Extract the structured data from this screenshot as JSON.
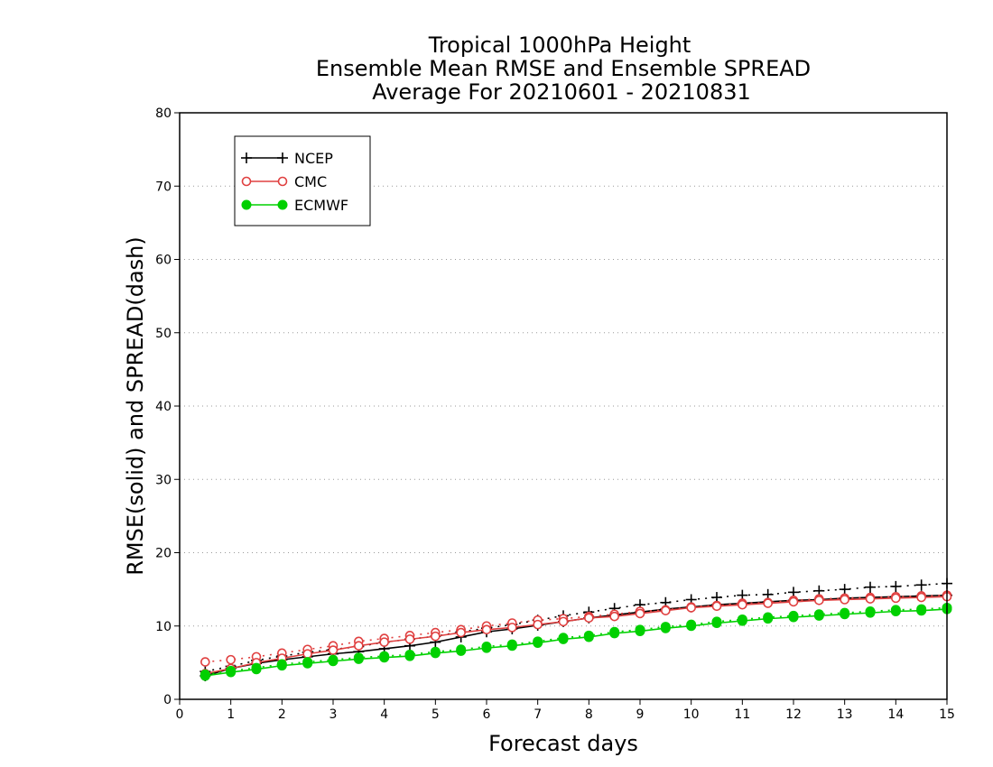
{
  "chart_data": {
    "type": "line",
    "title_lines": [
      "Tropical 1000hPa Height",
      "Ensemble Mean RMSE and Ensemble SPREAD",
      "Average For 20210601 - 20210831"
    ],
    "xlabel": "Forecast days",
    "ylabel": "RMSE(solid) and SPREAD(dash)",
    "xlim": [
      0,
      15
    ],
    "ylim": [
      0,
      80
    ],
    "xticks": [
      0,
      1,
      2,
      3,
      4,
      5,
      6,
      7,
      8,
      9,
      10,
      11,
      12,
      13,
      14,
      15
    ],
    "yticks": [
      0,
      10,
      20,
      30,
      40,
      50,
      60,
      70,
      80
    ],
    "grid": "horizontal dotted",
    "legend_position": "top-left",
    "x": [
      0.5,
      1,
      1.5,
      2,
      2.5,
      3,
      3.5,
      4,
      4.5,
      5,
      5.5,
      6,
      6.5,
      7,
      7.5,
      8,
      8.5,
      9,
      9.5,
      10,
      10.5,
      11,
      11.5,
      12,
      12.5,
      13,
      13.5,
      14,
      14.5,
      15
    ],
    "series": [
      {
        "name": "NCEP",
        "color": "#000000",
        "marker": "plus",
        "rmse": [
          3.2,
          4.2,
          4.9,
          5.4,
          5.8,
          6.2,
          6.5,
          6.9,
          7.3,
          7.8,
          8.5,
          9.2,
          9.6,
          10.1,
          10.6,
          11.1,
          11.5,
          11.9,
          12.3,
          12.6,
          12.9,
          13.1,
          13.3,
          13.5,
          13.6,
          13.8,
          13.9,
          14.0,
          14.1,
          14.2
        ],
        "spread": [
          3.8,
          4.5,
          5.3,
          5.9,
          6.4,
          6.8,
          7.2,
          7.8,
          8.2,
          8.6,
          9.2,
          9.7,
          10.2,
          10.8,
          11.4,
          11.9,
          12.4,
          12.9,
          13.2,
          13.6,
          13.9,
          14.2,
          14.3,
          14.6,
          14.8,
          15.0,
          15.3,
          15.4,
          15.6,
          15.8
        ]
      },
      {
        "name": "CMC",
        "color": "#e04040",
        "marker": "open-circle",
        "rmse": [
          3.5,
          4.2,
          5.0,
          5.6,
          6.2,
          6.7,
          7.3,
          7.8,
          8.2,
          8.6,
          9.1,
          9.5,
          9.8,
          10.2,
          10.6,
          11.1,
          11.3,
          11.7,
          12.1,
          12.5,
          12.7,
          12.9,
          13.1,
          13.3,
          13.5,
          13.6,
          13.7,
          13.8,
          13.9,
          14.0
        ],
        "spread": [
          5.1,
          5.4,
          5.8,
          6.3,
          6.8,
          7.3,
          7.9,
          8.3,
          8.7,
          9.1,
          9.5,
          10.0,
          10.4,
          10.8,
          11.0,
          11.3,
          11.6,
          12.0,
          12.2,
          12.6,
          12.8,
          13.1,
          13.2,
          13.5,
          13.7,
          13.8,
          13.9,
          14.0,
          14.1,
          14.2
        ]
      },
      {
        "name": "ECMWF",
        "color": "#00d000",
        "marker": "filled-circle",
        "rmse": [
          3.2,
          3.7,
          4.1,
          4.6,
          4.9,
          5.2,
          5.5,
          5.7,
          5.9,
          6.3,
          6.6,
          7.0,
          7.3,
          7.7,
          8.2,
          8.5,
          9.0,
          9.3,
          9.7,
          10.0,
          10.4,
          10.7,
          11.0,
          11.2,
          11.4,
          11.6,
          11.8,
          12.0,
          12.1,
          12.3
        ],
        "spread": [
          3.4,
          3.9,
          4.3,
          4.8,
          5.1,
          5.4,
          5.7,
          5.9,
          6.1,
          6.5,
          6.8,
          7.2,
          7.5,
          7.9,
          8.4,
          8.7,
          9.2,
          9.5,
          9.9,
          10.2,
          10.6,
          10.9,
          11.2,
          11.4,
          11.6,
          11.8,
          12.0,
          12.2,
          12.3,
          12.5
        ]
      }
    ]
  }
}
